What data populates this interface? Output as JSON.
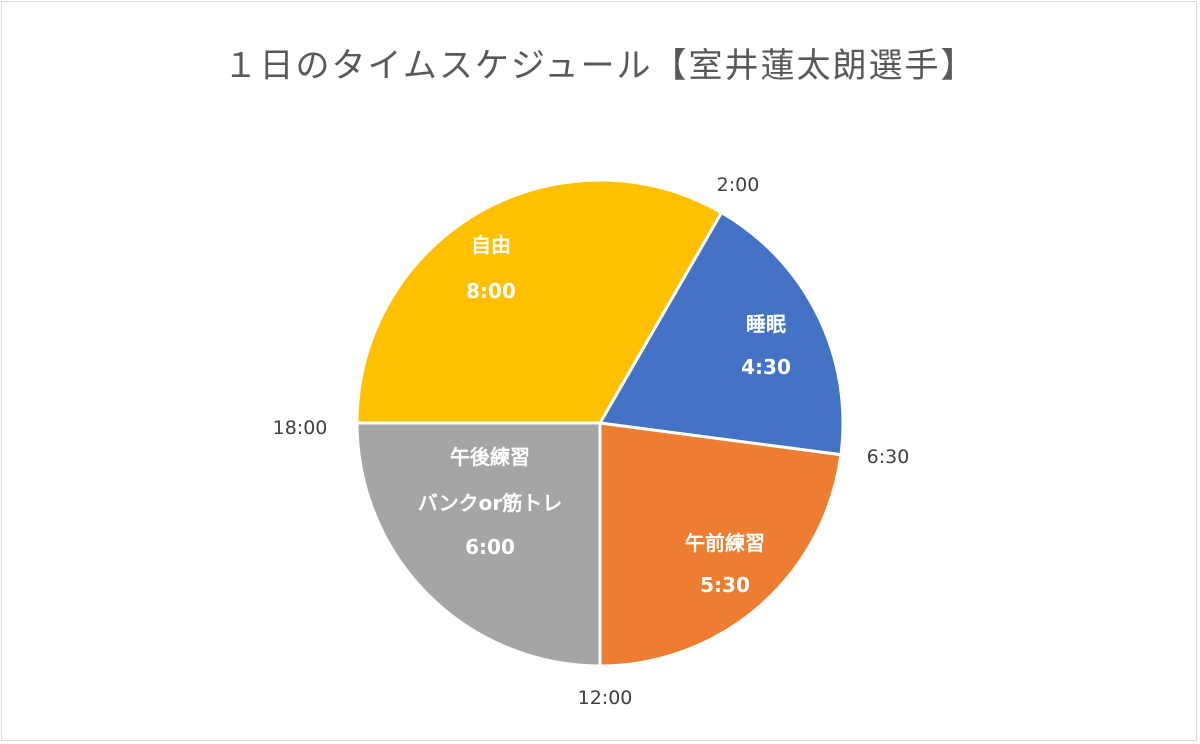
{
  "chart_data": {
    "type": "pie",
    "title": "１日のタイムスケジュール【室井蓮太朗選手】",
    "start_angle_hours": 2,
    "total_hours": 24,
    "slices": [
      {
        "label": "睡眠",
        "sublabel": "",
        "value_label": "4:30",
        "hours": 4.5,
        "color": "#4472C4"
      },
      {
        "label": "午前練習",
        "sublabel": "",
        "value_label": "5:30",
        "hours": 5.5,
        "color": "#ED7D31"
      },
      {
        "label": "午後練習",
        "sublabel": "バンクor筋トレ",
        "value_label": "6:00",
        "hours": 6,
        "color": "#A5A5A5"
      },
      {
        "label": "自由",
        "sublabel": "",
        "value_label": "8:00",
        "hours": 8,
        "color": "#FFC000"
      }
    ],
    "boundary_labels": [
      "2:00",
      "6:30",
      "12:00",
      "18:00"
    ]
  }
}
